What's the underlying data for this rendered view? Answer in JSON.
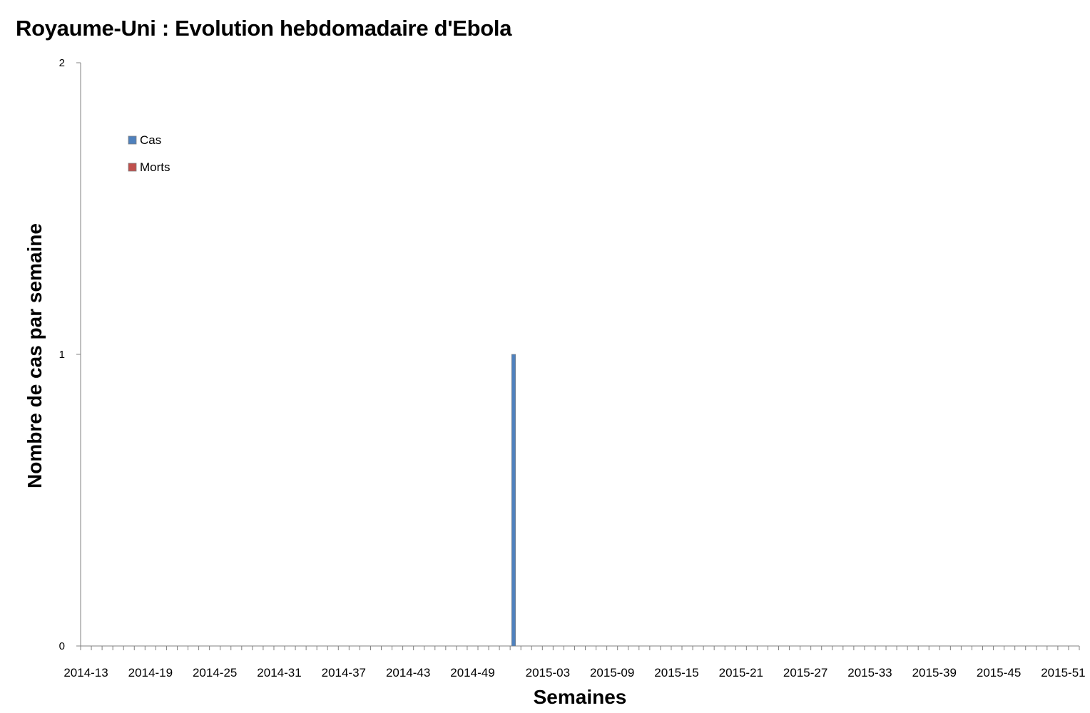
{
  "chart_data": {
    "type": "bar",
    "title": "Royaume-Uni : Evolution hebdomadaire d'Ebola",
    "xlabel": "Semaines",
    "ylabel": "Nombre de cas par semaine",
    "ylim": [
      0,
      2
    ],
    "yticks": [
      0,
      1,
      2
    ],
    "x_start": "2014-13",
    "x_end": "2015-52",
    "x_tick_labels": [
      "2014-13",
      "2014-19",
      "2014-25",
      "2014-31",
      "2014-37",
      "2014-43",
      "2014-49",
      "2015-03",
      "2015-09",
      "2015-15",
      "2015-21",
      "2015-27",
      "2015-33",
      "2015-39",
      "2015-45",
      "2015-51"
    ],
    "legend_position": "top-left",
    "grid": false,
    "series": [
      {
        "name": "Cas",
        "color": "#4F81BD",
        "points": [
          {
            "x": "2014-53",
            "y": 1
          }
        ]
      },
      {
        "name": "Morts",
        "color": "#C0504D",
        "points": []
      }
    ]
  }
}
